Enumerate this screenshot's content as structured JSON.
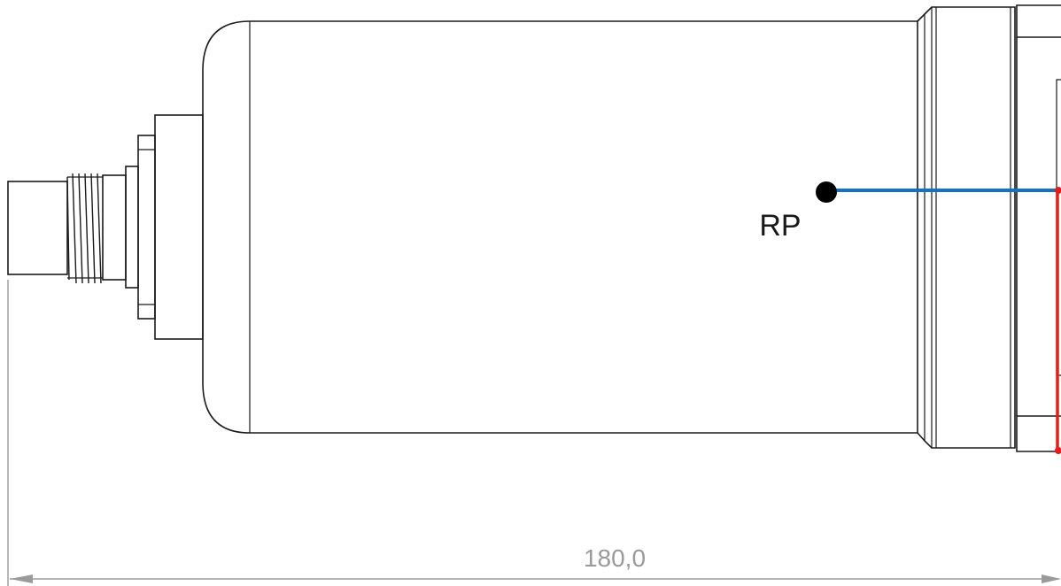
{
  "drawing": {
    "reference_point": {
      "label": "RP"
    },
    "dimension": {
      "value_text": "180,0"
    },
    "colors": {
      "outline": "#1a1a1a",
      "reference_line": "#1670c4",
      "mounting_face": "#e0201a",
      "dimension": "#9a9a9a",
      "reference_dot": "#000000"
    }
  }
}
